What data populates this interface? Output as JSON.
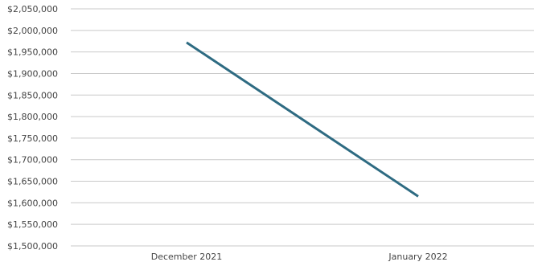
{
  "chart_data": {
    "type": "line",
    "title": "",
    "xlabel": "",
    "ylabel": "",
    "categories": [
      "December 2021",
      "January 2022"
    ],
    "series": [
      {
        "values": [
          1972000,
          1615000
        ]
      }
    ],
    "ylim": [
      1500000,
      2050000
    ],
    "y_ticks": [
      1500000,
      1550000,
      1600000,
      1650000,
      1700000,
      1750000,
      1800000,
      1850000,
      1900000,
      1950000,
      2000000,
      2050000
    ],
    "y_tick_labels": [
      "$1,500,000",
      "$1,550,000",
      "$1,600,000",
      "$1,650,000",
      "$1,700,000",
      "$1,750,000",
      "$1,800,000",
      "$1,850,000",
      "$1,900,000",
      "$1,950,000",
      "$2,000,000",
      "$2,050,000"
    ],
    "grid": true,
    "legend": "none",
    "colors": {
      "series": "#2e6b82",
      "grid": "#c9c9c9",
      "text": "#444444"
    }
  }
}
